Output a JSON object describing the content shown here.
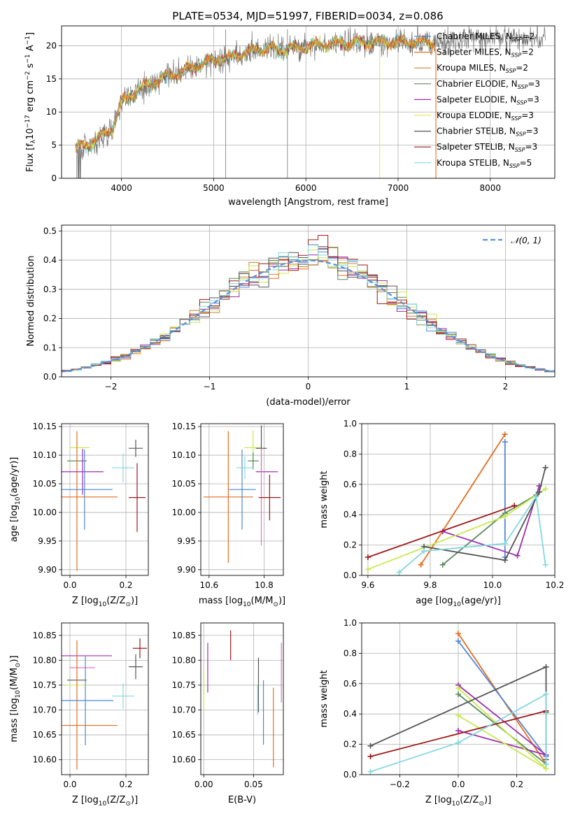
{
  "colors": {
    "Chabrier MILES": "#4f86d6",
    "Salpeter MILES": "#e56d1f",
    "Kroupa MILES": "#d0802f",
    "Chabrier ELODIE": "#5c8a5c",
    "Salpeter ELODIE": "#9c2fb0",
    "Kroupa ELODIE": "#e8e84f",
    "Chabrier STELIB": "#555555",
    "Salpeter STELIB": "#a01818",
    "Kroupa STELIB": "#84d8df",
    "pink": "#e377c2",
    "lime": "#c7e94f",
    "gauss": "#5a8fd8",
    "grid": "#b0b0b0"
  },
  "chart_data": [
    {
      "type": "line",
      "title": "PLATE=0534, MJD=51997, FIBERID=0034, z=0.086",
      "xlabel": "wavelength [Angstrom, rest frame]",
      "ylabel": "Flux [f",
      "ylabel_sub": "λ",
      "ylabel_sup1": "10",
      "ylabel_sup1b": "−17",
      "ylabel_mid": " erg cm",
      "ylabel_sup2": "−2",
      "ylabel_mid2": " s",
      "ylabel_sup3": "−1",
      "ylabel_mid3": " A",
      "ylabel_sup4": "−1",
      "ylabel_end": "]",
      "xlim": [
        3350,
        8700
      ],
      "ylim": [
        0,
        23
      ],
      "xticks": [
        4000,
        5000,
        6000,
        7000,
        8000
      ],
      "yticks": [
        0,
        5,
        10,
        15,
        20
      ],
      "legend_position": "top-right",
      "legend": [
        {
          "name": "Chabrier MILES, N",
          "sub": "SSP",
          "val": "=2"
        },
        {
          "name": "Salpeter MILES, N",
          "sub": "SSP",
          "val": "=2"
        },
        {
          "name": "Kroupa MILES, N",
          "sub": "SSP",
          "val": "=2"
        },
        {
          "name": "Chabrier ELODIE, N",
          "sub": "SSP",
          "val": "=3"
        },
        {
          "name": "Salpeter ELODIE, N",
          "sub": "SSP",
          "val": "=3"
        },
        {
          "name": "Kroupa ELODIE, N",
          "sub": "SSP",
          "val": "=3"
        },
        {
          "name": "Chabrier STELIB, N",
          "sub": "SSP",
          "val": "=3"
        },
        {
          "name": "Salpeter STELIB, N",
          "sub": "SSP",
          "val": "=3"
        },
        {
          "name": "Kroupa STELIB, N",
          "sub": "SSP",
          "val": "=5"
        }
      ],
      "continuum": [
        [
          3500,
          4.5
        ],
        [
          3700,
          5.5
        ],
        [
          3900,
          7.5
        ],
        [
          4000,
          11.5
        ],
        [
          4200,
          13.5
        ],
        [
          4500,
          15.5
        ],
        [
          4800,
          16.8
        ],
        [
          5000,
          17.8
        ],
        [
          5200,
          18.3
        ],
        [
          5500,
          19.5
        ],
        [
          5800,
          19.5
        ],
        [
          6000,
          20.0
        ],
        [
          6500,
          20.5
        ],
        [
          7000,
          20.5
        ],
        [
          7400,
          20.5
        ],
        [
          7800,
          21.0
        ],
        [
          8200,
          21.2
        ],
        [
          8600,
          21.0
        ]
      ],
      "spikes": [
        {
          "x": 5130,
          "top": 22.5
        },
        {
          "x": 5800,
          "top": 22.5
        }
      ],
      "drops": [
        {
          "x": 6800,
          "color": "#e8e84f"
        },
        {
          "x": 7410,
          "color": "#e56d1f"
        }
      ]
    },
    {
      "type": "histogram",
      "xlabel": "(data-model)/error",
      "ylabel": "Normed distribution",
      "xlim": [
        -2.5,
        2.5
      ],
      "ylim": [
        0,
        0.52
      ],
      "xticks": [
        -2,
        -1,
        0,
        1,
        2
      ],
      "yticks": [
        0.0,
        0.1,
        0.2,
        0.3,
        0.4,
        0.5
      ],
      "legend": "𝒩(0, 1)",
      "legend_position": "top-right",
      "bin_width": 0.1
    },
    {
      "type": "errorbar",
      "xlabel": "Z [log",
      "xlabel_sub": "10",
      "xlabel_end": "(Z/Z",
      "xlabel_sub2": "⊙",
      "xlabel_close": ")]",
      "ylabel": "age  [log",
      "ylabel_sub": "10",
      "ylabel_end": "(age/yr)]",
      "xlim": [
        -0.03,
        0.28
      ],
      "ylim": [
        9.89,
        10.155
      ],
      "xticks": [
        0.0,
        0.2
      ],
      "yticks": [
        9.9,
        9.95,
        10.0,
        10.05,
        10.1,
        10.15
      ],
      "points": [
        {
          "x": 0.035,
          "y": 10.113,
          "xerr": 0.035,
          "yerr": 0.0,
          "color": "#c7e94f"
        },
        {
          "x": 0.025,
          "y": 10.09,
          "xerr": 0.035,
          "yerr": 0.0,
          "color": "#5c8a5c"
        },
        {
          "x": 0.025,
          "y": 10.02,
          "xerr": 0.0,
          "yerr": 0.122,
          "color": "#e56d1f"
        },
        {
          "x": 0.045,
          "y": 10.071,
          "xerr": 0.075,
          "yerr": 0.04,
          "color": "#9c2fb0"
        },
        {
          "x": 0.052,
          "y": 10.04,
          "xerr": 0.1,
          "yerr": 0.07,
          "color": "#4f86d6"
        },
        {
          "x": 0.05,
          "y": 10.027,
          "xerr": 0.12,
          "yerr": 0.0,
          "color": "#e56d1f"
        },
        {
          "x": 0.19,
          "y": 10.078,
          "xerr": 0.04,
          "yerr": 0.025,
          "color": "#84d8df"
        },
        {
          "x": 0.235,
          "y": 10.112,
          "xerr": 0.025,
          "yerr": 0.015,
          "color": "#555555"
        },
        {
          "x": 0.24,
          "y": 10.026,
          "xerr": 0.03,
          "yerr": 0.06,
          "color": "#a01818"
        }
      ]
    },
    {
      "type": "errorbar",
      "xlabel": "mass [log",
      "xlabel_sub": "10",
      "xlabel_end": "(M/M",
      "xlabel_sub2": "⊙",
      "xlabel_close": ")]",
      "ylabel": "",
      "xlim": [
        10.57,
        10.87
      ],
      "ylim": [
        9.89,
        10.155
      ],
      "xticks": [
        10.6,
        10.8
      ],
      "yticks": [
        9.9,
        9.95,
        10.0,
        10.05,
        10.1,
        10.15
      ],
      "points": [
        {
          "x": 10.67,
          "y": 10.027,
          "xerr": 0.09,
          "yerr": 0.115,
          "color": "#e56d1f"
        },
        {
          "x": 10.72,
          "y": 10.04,
          "xerr": 0.05,
          "yerr": 0.07,
          "color": "#4f86d6"
        },
        {
          "x": 10.76,
          "y": 10.113,
          "xerr": 0.03,
          "yerr": 0.03,
          "color": "#c7e94f"
        },
        {
          "x": 10.76,
          "y": 10.09,
          "xerr": 0.02,
          "yerr": 0.015,
          "color": "#5c8a5c"
        },
        {
          "x": 10.73,
          "y": 10.078,
          "xerr": 0.03,
          "yerr": 0.02,
          "color": "#84d8df"
        },
        {
          "x": 10.81,
          "y": 10.071,
          "xerr": 0.04,
          "yerr": 0.0,
          "color": "#9c2fb0"
        },
        {
          "x": 10.79,
          "y": 10.112,
          "xerr": 0.02,
          "yerr": 0.04,
          "color": "#555555"
        },
        {
          "x": 10.79,
          "y": 10.027,
          "xerr": 0.0,
          "yerr": 0.085,
          "color": "#e377c2"
        },
        {
          "x": 10.82,
          "y": 10.026,
          "xerr": 0.04,
          "yerr": 0.04,
          "color": "#a01818"
        }
      ]
    },
    {
      "type": "line",
      "xlabel": "age  [log",
      "xlabel_sub": "10",
      "xlabel_end": "(age/yr)]",
      "ylabel": "mass weight",
      "xlim": [
        9.58,
        10.2
      ],
      "ylim": [
        0,
        1
      ],
      "xticks": [
        9.6,
        9.8,
        10.0,
        10.2
      ],
      "yticks": [
        0.0,
        0.2,
        0.4,
        0.6,
        0.8,
        1.0
      ],
      "series": [
        {
          "color": "#e56d1f",
          "points": [
            [
              9.77,
              0.07
            ],
            [
              10.04,
              0.93
            ]
          ]
        },
        {
          "color": "#4f86d6",
          "points": [
            [
              10.04,
              0.12
            ],
            [
              10.04,
              0.88
            ]
          ]
        },
        {
          "color": "#5c8a5c",
          "points": [
            [
              9.84,
              0.07
            ],
            [
              10.04,
              0.41
            ],
            [
              10.14,
              0.53
            ]
          ]
        },
        {
          "color": "#9c2fb0",
          "points": [
            [
              9.84,
              0.29
            ],
            [
              10.08,
              0.13
            ],
            [
              10.15,
              0.59
            ]
          ]
        },
        {
          "color": "#c7e94f",
          "points": [
            [
              9.6,
              0.04
            ],
            [
              10.04,
              0.39
            ],
            [
              10.17,
              0.57
            ]
          ]
        },
        {
          "color": "#555555",
          "points": [
            [
              9.78,
              0.19
            ],
            [
              10.04,
              0.1
            ],
            [
              10.15,
              0.55
            ],
            [
              10.17,
              0.71
            ]
          ]
        },
        {
          "color": "#a01818",
          "points": [
            [
              9.6,
              0.12
            ],
            [
              10.07,
              0.46
            ]
          ]
        },
        {
          "color": "#84d8df",
          "points": [
            [
              9.7,
              0.02
            ],
            [
              9.78,
              0.16
            ],
            [
              10.04,
              0.21
            ],
            [
              10.14,
              0.52
            ],
            [
              10.17,
              0.07
            ]
          ]
        }
      ]
    },
    {
      "type": "errorbar",
      "xlabel": "Z [log",
      "xlabel_sub": "10",
      "xlabel_end": "(Z/Z",
      "xlabel_sub2": "⊙",
      "xlabel_close": ")]",
      "ylabel": "mass [log",
      "ylabel_sub": "10",
      "ylabel_end": "(M/M",
      "ylabel_sub2": "⊙",
      "ylabel_close": ")]",
      "xlim": [
        -0.03,
        0.28
      ],
      "ylim": [
        10.57,
        10.875
      ],
      "xticks": [
        0.0,
        0.2
      ],
      "yticks": [
        10.6,
        10.65,
        10.7,
        10.75,
        10.8,
        10.85
      ],
      "points": [
        {
          "x": 0.06,
          "y": 10.809,
          "xerr": 0.09,
          "yerr": 0.0,
          "color": "#9c2fb0"
        },
        {
          "x": 0.045,
          "y": 10.785,
          "xerr": 0.045,
          "yerr": 0.0,
          "color": "#e377c2"
        },
        {
          "x": 0.025,
          "y": 10.76,
          "xerr": 0.035,
          "yerr": 0.0,
          "color": "#555555"
        },
        {
          "x": 0.025,
          "y": 10.75,
          "xerr": 0.035,
          "yerr": 0.0,
          "color": "#c7e94f"
        },
        {
          "x": 0.025,
          "y": 10.71,
          "xerr": 0.0,
          "yerr": 0.13,
          "color": "#e56d1f"
        },
        {
          "x": 0.055,
          "y": 10.719,
          "xerr": 0.1,
          "yerr": 0.09,
          "color": "#4f86d6"
        },
        {
          "x": 0.05,
          "y": 10.669,
          "xerr": 0.12,
          "yerr": 0.0,
          "color": "#e56d1f"
        },
        {
          "x": 0.19,
          "y": 10.728,
          "xerr": 0.04,
          "yerr": 0.025,
          "color": "#84d8df"
        },
        {
          "x": 0.235,
          "y": 10.787,
          "xerr": 0.025,
          "yerr": 0.025,
          "color": "#555555"
        },
        {
          "x": 0.25,
          "y": 10.824,
          "xerr": 0.025,
          "yerr": 0.02,
          "color": "#a01818"
        }
      ]
    },
    {
      "type": "errorbar",
      "xlabel": "E(B-V)",
      "ylabel": "",
      "xlim": [
        -0.003,
        0.08
      ],
      "ylim": [
        10.57,
        10.875
      ],
      "xticks": [
        0.0,
        0.05
      ],
      "yticks": [
        10.6,
        10.65,
        10.7,
        10.75,
        10.8,
        10.85
      ],
      "points": [
        {
          "x": 0.0,
          "y": 10.74,
          "xerr": 0.0,
          "yerr": 0.04,
          "color": "#c7e94f"
        },
        {
          "x": 0.004,
          "y": 10.785,
          "xerr": 0.0,
          "yerr": 0.05,
          "color": "#9c2fb0"
        },
        {
          "x": 0.027,
          "y": 10.83,
          "xerr": 0.0,
          "yerr": 0.03,
          "color": "#a01818"
        },
        {
          "x": 0.055,
          "y": 10.75,
          "xerr": 0.0,
          "yerr": 0.055,
          "color": "#555555"
        },
        {
          "x": 0.054,
          "y": 10.72,
          "xerr": 0.0,
          "yerr": 0.03,
          "color": "#84d8df"
        },
        {
          "x": 0.06,
          "y": 10.695,
          "xerr": 0.0,
          "yerr": 0.065,
          "color": "#4f86d6"
        },
        {
          "x": 0.07,
          "y": 10.665,
          "xerr": 0.0,
          "yerr": 0.08,
          "color": "#e56d1f"
        },
        {
          "x": 0.078,
          "y": 10.775,
          "xerr": 0.0,
          "yerr": 0.06,
          "color": "#e377c2"
        }
      ]
    },
    {
      "type": "line",
      "xlabel": "Z [log",
      "xlabel_sub": "10",
      "xlabel_end": "(Z/Z",
      "xlabel_sub2": "⊙",
      "xlabel_close": ")]",
      "ylabel": "mass weight",
      "xlim": [
        -0.33,
        0.33
      ],
      "ylim": [
        0,
        1
      ],
      "xticks": [
        -0.2,
        0.0,
        0.2
      ],
      "yticks": [
        0.0,
        0.2,
        0.4,
        0.6,
        0.8,
        1.0
      ],
      "series": [
        {
          "color": "#e56d1f",
          "points": [
            [
              0.0,
              0.93
            ],
            [
              0.3,
              0.07
            ]
          ]
        },
        {
          "color": "#4f86d6",
          "points": [
            [
              0.0,
              0.88
            ],
            [
              0.3,
              0.12
            ]
          ]
        },
        {
          "color": "#5c8a5c",
          "points": [
            [
              0.0,
              0.53
            ],
            [
              0.3,
              0.07
            ],
            [
              0.3,
              0.41
            ]
          ]
        },
        {
          "color": "#9c2fb0",
          "points": [
            [
              0.0,
              0.59
            ],
            [
              0.3,
              0.13
            ],
            [
              0.0,
              0.29
            ]
          ]
        },
        {
          "color": "#c7e94f",
          "points": [
            [
              0.0,
              0.57
            ],
            [
              0.3,
              0.04
            ],
            [
              0.0,
              0.39
            ]
          ]
        },
        {
          "color": "#555555",
          "points": [
            [
              -0.3,
              0.19
            ],
            [
              0.3,
              0.71
            ],
            [
              0.3,
              0.1
            ]
          ]
        },
        {
          "color": "#a01818",
          "points": [
            [
              -0.3,
              0.12
            ],
            [
              0.3,
              0.42
            ]
          ]
        },
        {
          "color": "#84d8df",
          "points": [
            [
              -0.3,
              0.02
            ],
            [
              0.0,
              0.21
            ],
            [
              0.3,
              0.53
            ],
            [
              0.3,
              0.07
            ]
          ]
        }
      ]
    }
  ]
}
